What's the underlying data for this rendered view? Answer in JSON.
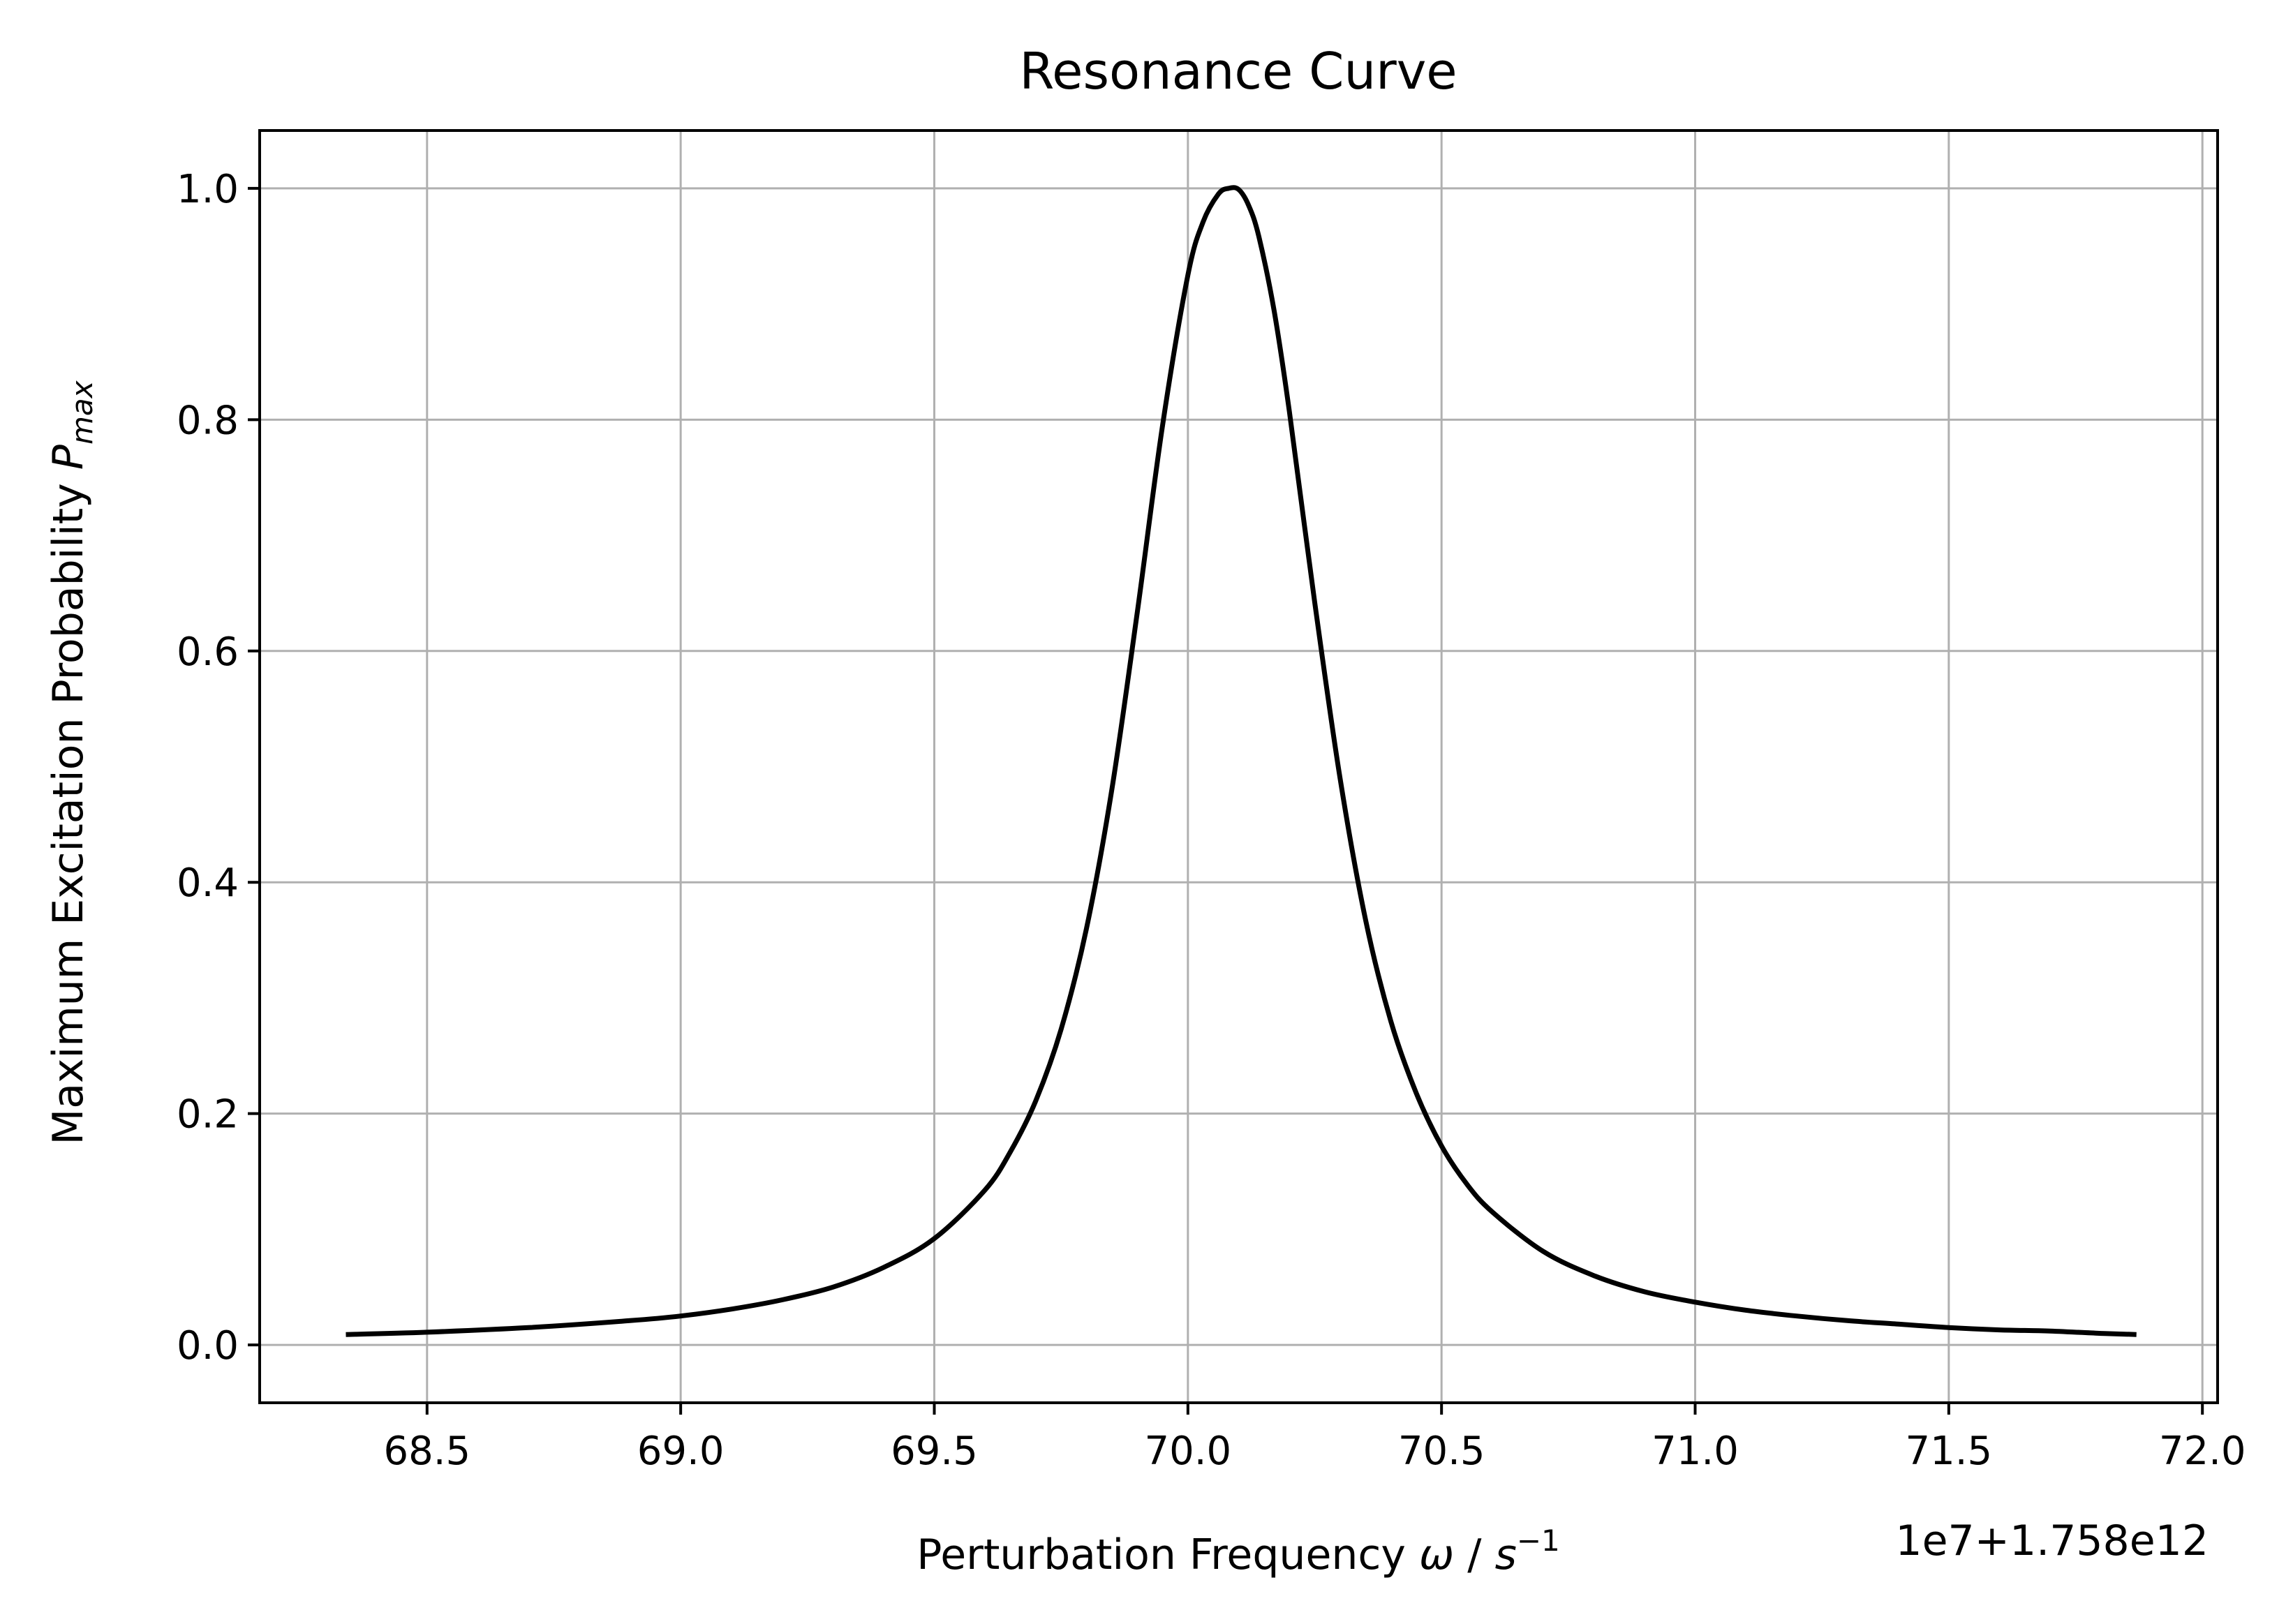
{
  "chart_data": {
    "type": "line",
    "title": "Resonance Curve",
    "xlabel": {
      "prefix": "Perturbation Frequency ",
      "symbol": "ω",
      "sep": " / ",
      "unit": "s",
      "unit_sup": "−1"
    },
    "ylabel": {
      "prefix": "Maximum Excitation Probability ",
      "symbol": "P",
      "sub": "max"
    },
    "x_offset_text": "1e7+1.758e12",
    "xlim": [
      68.17,
      72.03
    ],
    "ylim": [
      -0.05,
      1.05
    ],
    "x_ticks": [
      68.5,
      69.0,
      69.5,
      70.0,
      70.5,
      71.0,
      71.5,
      72.0
    ],
    "x_tick_labels": [
      "68.5",
      "69.0",
      "69.5",
      "70.0",
      "70.5",
      "71.0",
      "71.5",
      "72.0"
    ],
    "y_ticks": [
      0.0,
      0.2,
      0.4,
      0.6,
      0.8,
      1.0
    ],
    "y_tick_labels": [
      "0.0",
      "0.2",
      "0.4",
      "0.6",
      "0.8",
      "1.0"
    ],
    "grid": true,
    "line_color": "#000000",
    "grid_color": "#b0b0b0",
    "series": [
      {
        "x": [
          68.34,
          68.5,
          68.7,
          68.9,
          69.0,
          69.1,
          69.2,
          69.3,
          69.4,
          69.5,
          69.6,
          69.65,
          69.7,
          69.75,
          69.8,
          69.85,
          69.9,
          69.95,
          70.0,
          70.03,
          70.06,
          70.08,
          70.1,
          70.12,
          70.14,
          70.17,
          70.2,
          70.25,
          70.3,
          70.35,
          70.4,
          70.45,
          70.5,
          70.55,
          70.6,
          70.7,
          70.8,
          70.9,
          71.0,
          71.1,
          71.2,
          71.3,
          71.4,
          71.5,
          71.6,
          71.7,
          71.8,
          71.87
        ],
        "y": [
          0.009,
          0.011,
          0.015,
          0.021,
          0.025,
          0.031,
          0.039,
          0.05,
          0.067,
          0.092,
          0.134,
          0.167,
          0.211,
          0.273,
          0.36,
          0.48,
          0.633,
          0.795,
          0.925,
          0.971,
          0.995,
          1.0,
          0.999,
          0.985,
          0.958,
          0.894,
          0.807,
          0.642,
          0.49,
          0.368,
          0.28,
          0.218,
          0.172,
          0.139,
          0.115,
          0.081,
          0.06,
          0.046,
          0.037,
          0.03,
          0.025,
          0.021,
          0.018,
          0.015,
          0.013,
          0.012,
          0.01,
          0.009
        ]
      }
    ]
  }
}
